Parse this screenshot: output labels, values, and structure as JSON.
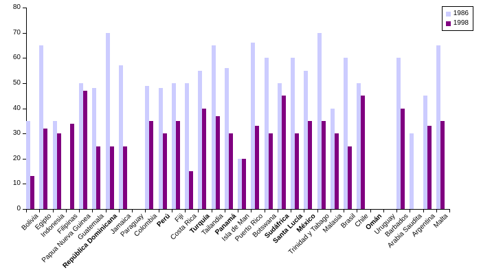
{
  "chart_data": {
    "type": "bar",
    "title": "",
    "xlabel": "",
    "ylabel": "",
    "ylim": [
      0,
      80
    ],
    "yticks": [
      0,
      10,
      20,
      30,
      40,
      50,
      60,
      70,
      80
    ],
    "grid": false,
    "legend_position": "top-right",
    "background_color": "#ffffff",
    "axis_color": "#000000",
    "categories": [
      {
        "label": "Bolivia",
        "bold": false
      },
      {
        "label": "Egipto",
        "bold": false
      },
      {
        "label": "Indonesia",
        "bold": false
      },
      {
        "label": "Filipinas",
        "bold": false
      },
      {
        "label": "Papua Nueva Guinea",
        "bold": false
      },
      {
        "label": "Guatemala",
        "bold": false
      },
      {
        "label": "República Dominicana",
        "bold": true
      },
      {
        "label": "Jamaica",
        "bold": false
      },
      {
        "label": "Paraguay",
        "bold": false
      },
      {
        "label": "Colombia",
        "bold": false
      },
      {
        "label": "Perú",
        "bold": true
      },
      {
        "label": "Fiji",
        "bold": false
      },
      {
        "label": "Costa Rica",
        "bold": false
      },
      {
        "label": "Turquía",
        "bold": true
      },
      {
        "label": "Tailandia",
        "bold": false
      },
      {
        "label": "Panamá",
        "bold": true
      },
      {
        "label": "Isla de Man",
        "bold": false
      },
      {
        "label": "Puerto Rico",
        "bold": false
      },
      {
        "label": "Botswana",
        "bold": false
      },
      {
        "label": "Sudáfrica",
        "bold": true
      },
      {
        "label": "Santa Lucía",
        "bold": true
      },
      {
        "label": "México",
        "bold": true
      },
      {
        "label": "Trinidad y Tabago",
        "bold": false
      },
      {
        "label": "Malasia",
        "bold": false
      },
      {
        "label": "Brasil",
        "bold": false
      },
      {
        "label": "Chile",
        "bold": false
      },
      {
        "label": "Omán",
        "bold": true
      },
      {
        "label": "Uruguay",
        "bold": false
      },
      {
        "label": "Barbados",
        "bold": false
      },
      {
        "label": "Arabia Saudita",
        "bold": false
      },
      {
        "label": "Argentina",
        "bold": false
      },
      {
        "label": "Malta",
        "bold": false
      }
    ],
    "series": [
      {
        "name": "1986",
        "color": "#CCCCFF",
        "values": [
          35,
          65,
          35,
          null,
          50,
          48,
          70,
          57,
          null,
          49,
          48,
          50,
          50,
          55,
          65,
          56,
          20,
          66,
          60,
          50,
          60,
          55,
          70,
          40,
          60,
          50,
          null,
          null,
          60,
          30,
          45,
          65
        ]
      },
      {
        "name": "1998",
        "color": "#800080",
        "values": [
          13,
          32,
          30,
          34,
          47,
          25,
          25,
          25,
          null,
          35,
          30,
          35,
          15,
          40,
          37,
          30,
          20,
          33,
          30,
          45,
          30,
          35,
          35,
          30,
          25,
          45,
          null,
          null,
          40,
          null,
          33,
          35
        ]
      }
    ]
  }
}
